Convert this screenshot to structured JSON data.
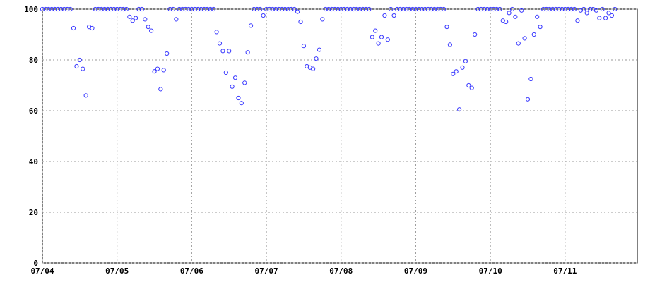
{
  "chart_data": {
    "type": "scatter",
    "color": "#3a3aff",
    "grid": true,
    "xlim": [
      0,
      191.2
    ],
    "ylim": [
      0,
      100
    ],
    "xticks": [
      {
        "value": 0,
        "label": "07/04"
      },
      {
        "value": 24,
        "label": "07/05"
      },
      {
        "value": 48,
        "label": "07/06"
      },
      {
        "value": 72,
        "label": "07/07"
      },
      {
        "value": 96,
        "label": "07/08"
      },
      {
        "value": 120,
        "label": "07/09"
      },
      {
        "value": 144,
        "label": "07/10"
      },
      {
        "value": 168,
        "label": "07/11"
      }
    ],
    "yticks": [
      0,
      20,
      40,
      60,
      80,
      100
    ],
    "x": [
      0,
      1,
      2,
      3,
      4,
      5,
      6,
      7,
      8,
      9,
      10,
      11,
      12,
      13,
      14,
      15,
      16,
      17,
      18,
      19,
      20,
      21,
      22,
      23,
      24,
      25,
      26,
      27,
      28,
      29,
      30,
      31,
      32,
      33,
      34,
      35,
      36,
      37,
      38,
      39,
      40,
      41,
      42,
      43,
      44,
      45,
      46,
      47,
      48,
      49,
      50,
      51,
      52,
      53,
      54,
      55,
      56,
      57,
      58,
      59,
      60,
      61,
      62,
      63,
      64,
      65,
      66,
      67,
      68,
      69,
      70,
      71,
      72,
      73,
      74,
      75,
      76,
      77,
      78,
      79,
      80,
      81,
      82,
      83,
      84,
      85,
      86,
      87,
      88,
      89,
      90,
      91,
      92,
      93,
      94,
      95,
      96,
      97,
      98,
      99,
      100,
      101,
      102,
      103,
      104,
      105,
      106,
      107,
      108,
      109,
      110,
      111,
      112,
      113,
      114,
      115,
      116,
      117,
      118,
      119,
      120,
      121,
      122,
      123,
      124,
      125,
      126,
      127,
      128,
      129,
      130,
      131,
      132,
      133,
      134,
      135,
      136,
      137,
      138,
      139,
      140,
      141,
      142,
      143,
      144,
      145,
      146,
      147,
      148,
      149,
      150,
      151,
      152,
      153,
      154,
      155,
      156,
      157,
      158,
      159,
      160,
      161,
      162,
      163,
      164,
      165,
      166,
      167,
      168,
      169,
      170,
      171,
      172,
      173,
      174,
      175,
      176,
      177,
      178,
      179,
      180,
      181,
      182,
      183,
      184
    ],
    "values": [
      100,
      100,
      100,
      100,
      100,
      100,
      100,
      100,
      100,
      100,
      92.5,
      77.5,
      80,
      76.5,
      66,
      93,
      92.5,
      100,
      100,
      100,
      100,
      100,
      100,
      100,
      100,
      100,
      100,
      100,
      97,
      95.5,
      96.5,
      100,
      100,
      96,
      93,
      91.5,
      75.5,
      76.5,
      68.5,
      76,
      82.5,
      100,
      100,
      96,
      100,
      100,
      100,
      100,
      100,
      100,
      100,
      100,
      100,
      100,
      100,
      100,
      91,
      86.5,
      83.5,
      75,
      83.5,
      69.5,
      73,
      65,
      63,
      71,
      83,
      93.5,
      100,
      100,
      100,
      97.5,
      100,
      100,
      100,
      100,
      100,
      100,
      100,
      100,
      100,
      100,
      99,
      95,
      85.5,
      77.5,
      77,
      76.5,
      80.5,
      84,
      96,
      100,
      100,
      100,
      100,
      100,
      100,
      100,
      100,
      100,
      100,
      100,
      100,
      100,
      100,
      100,
      89,
      91.5,
      86.5,
      89,
      97.5,
      88,
      100,
      97.5,
      100,
      100,
      100,
      100,
      100,
      100,
      100,
      100,
      100,
      100,
      100,
      100,
      100,
      100,
      100,
      100,
      93,
      86,
      74.5,
      75.5,
      60.5,
      77,
      79.5,
      70,
      69,
      90,
      100,
      100,
      100,
      100,
      100,
      100,
      100,
      100,
      95.5,
      95,
      98.5,
      100,
      97,
      86.5,
      99.5,
      88.5,
      64.5,
      72.5,
      90,
      97,
      93,
      100,
      100,
      100,
      100,
      100,
      100,
      100,
      100,
      100,
      100,
      100,
      95.5,
      99.5,
      100,
      98.5,
      100,
      100,
      99.5,
      96.5,
      100,
      96.5,
      98.5,
      97.5,
      100
    ]
  }
}
